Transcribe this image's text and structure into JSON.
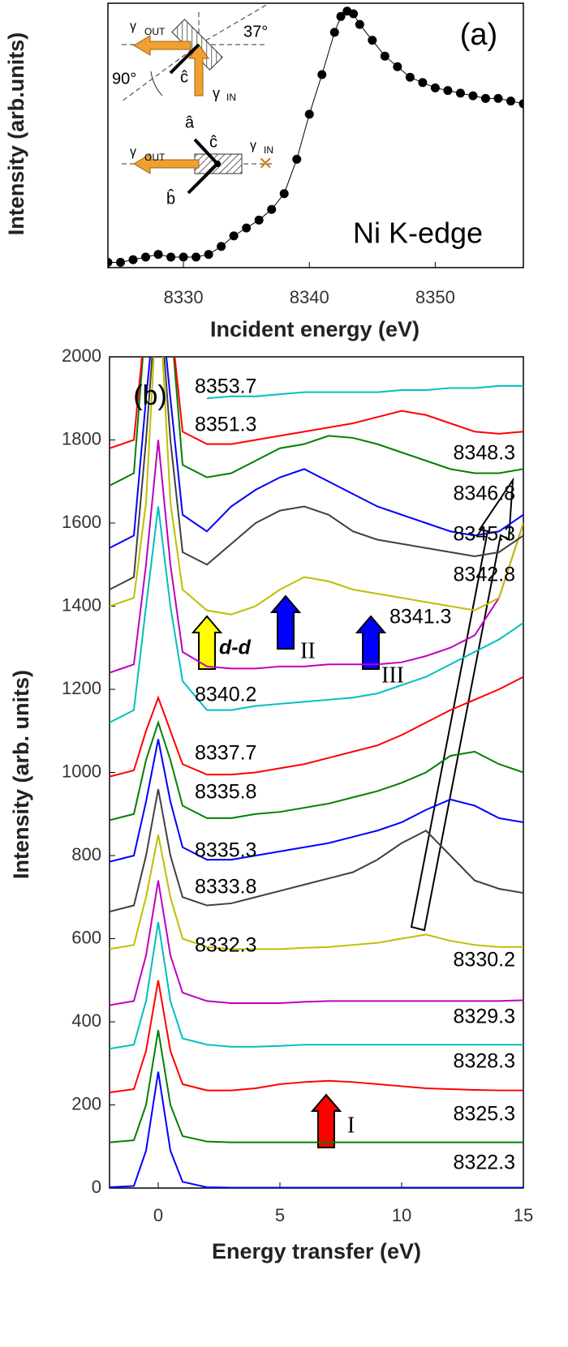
{
  "chart_data": [
    {
      "type": "line",
      "markers": true,
      "color": "#000000",
      "xlabel": "Incident energy (eV)",
      "ylabel": "Intensity (arb.units)",
      "x": [
        8324,
        8325,
        8326,
        8327,
        8328,
        8329,
        8330,
        8331,
        8332,
        8333,
        8334,
        8335,
        8336,
        8337,
        8338,
        8339,
        8340,
        8341,
        8342,
        8342.5,
        8343,
        8343.5,
        8344,
        8345,
        8346,
        8347,
        8348,
        8349,
        8350,
        8351,
        8352,
        8353,
        8354,
        8355,
        8356,
        8357
      ],
      "values": [
        0.02,
        0.02,
        0.03,
        0.04,
        0.05,
        0.04,
        0.04,
        0.04,
        0.05,
        0.08,
        0.12,
        0.15,
        0.18,
        0.22,
        0.28,
        0.41,
        0.58,
        0.73,
        0.89,
        0.95,
        0.97,
        0.96,
        0.92,
        0.86,
        0.8,
        0.76,
        0.72,
        0.7,
        0.68,
        0.67,
        0.66,
        0.65,
        0.64,
        0.64,
        0.63,
        0.62
      ],
      "xlim": [
        8324,
        8357
      ],
      "xticks": [
        8330,
        8340,
        8350
      ],
      "ylim": [
        0,
        1
      ],
      "annotations": [
        "(a)",
        "Ni K-edge"
      ],
      "inset": [
        "γ",
        "OUT",
        "37°",
        "90°",
        "ĉ",
        "γ",
        "IN",
        "â",
        "ĉ",
        "γ",
        "OUT",
        "γ",
        "IN",
        "b̂"
      ]
    },
    {
      "type": "line",
      "markers": false,
      "xlabel": "Energy transfer (eV)",
      "ylabel": "Intensity (arb. units)",
      "x": [
        -2,
        -1,
        -0.5,
        0,
        0.5,
        1,
        2,
        3,
        4,
        5,
        6,
        7,
        8,
        9,
        10,
        11,
        12,
        13,
        14,
        15
      ],
      "xlim": [
        -2,
        15
      ],
      "xticks": [
        0,
        5,
        10,
        15
      ],
      "ylim": [
        0,
        2000
      ],
      "yticks": [
        0,
        200,
        400,
        600,
        800,
        1000,
        1200,
        1400,
        1600,
        1800,
        2000
      ],
      "annotations": [
        "(b)",
        "d-d",
        "II",
        "III",
        "I"
      ],
      "series": [
        {
          "name": "8322.3",
          "color": "#0000ff",
          "values": [
            2,
            5,
            90,
            280,
            90,
            15,
            2,
            1,
            1,
            1,
            1,
            1,
            1,
            1,
            1,
            1,
            1,
            1,
            1,
            1
          ]
        },
        {
          "name": "8325.3",
          "color": "#008000",
          "values": [
            110,
            115,
            200,
            380,
            200,
            125,
            112,
            110,
            110,
            110,
            110,
            110,
            110,
            110,
            110,
            110,
            110,
            110,
            110,
            110
          ]
        },
        {
          "name": "8328.3",
          "color": "#ff0000",
          "values": [
            230,
            238,
            330,
            500,
            330,
            250,
            235,
            235,
            240,
            250,
            255,
            258,
            255,
            250,
            245,
            240,
            238,
            236,
            235,
            235
          ]
        },
        {
          "name": "8329.3",
          "color": "#00bfbf",
          "values": [
            335,
            345,
            450,
            640,
            450,
            360,
            345,
            340,
            340,
            342,
            345,
            345,
            345,
            345,
            345,
            345,
            345,
            345,
            345,
            345
          ]
        },
        {
          "name": "8330.2",
          "color": "#bf00bf",
          "values": [
            440,
            450,
            560,
            740,
            560,
            470,
            450,
            445,
            445,
            445,
            448,
            450,
            450,
            450,
            450,
            450,
            450,
            450,
            450,
            452
          ]
        },
        {
          "name": "8332.3",
          "color": "#bfbf00",
          "values": [
            575,
            585,
            700,
            850,
            700,
            600,
            580,
            575,
            575,
            575,
            578,
            580,
            585,
            590,
            600,
            610,
            595,
            585,
            580,
            580
          ]
        },
        {
          "name": "8333.8",
          "color": "#404040",
          "values": [
            665,
            680,
            800,
            960,
            800,
            700,
            680,
            685,
            700,
            715,
            730,
            745,
            760,
            790,
            830,
            860,
            800,
            740,
            720,
            710
          ]
        },
        {
          "name": "8335.3",
          "color": "#0000ff",
          "values": [
            785,
            800,
            930,
            1080,
            930,
            820,
            790,
            790,
            800,
            810,
            820,
            830,
            845,
            860,
            880,
            910,
            935,
            920,
            890,
            880
          ]
        },
        {
          "name": "8335.8",
          "color": "#008000",
          "values": [
            885,
            900,
            1030,
            1120,
            1030,
            920,
            890,
            890,
            900,
            905,
            915,
            925,
            940,
            955,
            975,
            1000,
            1040,
            1050,
            1020,
            1000
          ]
        },
        {
          "name": "8337.7",
          "color": "#ff0000",
          "values": [
            990,
            1005,
            1100,
            1180,
            1100,
            1020,
            995,
            995,
            1000,
            1010,
            1020,
            1035,
            1050,
            1065,
            1090,
            1120,
            1150,
            1175,
            1200,
            1230
          ]
        },
        {
          "name": "8340.2",
          "color": "#00bfbf",
          "values": [
            1120,
            1150,
            1400,
            1640,
            1400,
            1220,
            1150,
            1150,
            1160,
            1165,
            1170,
            1175,
            1180,
            1190,
            1210,
            1230,
            1260,
            1290,
            1320,
            1360
          ]
        },
        {
          "name": "8341.3",
          "color": "#bf00bf",
          "values": [
            1240,
            1260,
            1500,
            1800,
            1500,
            1290,
            1255,
            1250,
            1250,
            1255,
            1255,
            1260,
            1260,
            1260,
            1265,
            1280,
            1300,
            1330,
            1420,
            1600
          ]
        },
        {
          "name": "8342.8",
          "color": "#bfbf00",
          "values": [
            1400,
            1420,
            1650,
            2200,
            1650,
            1440,
            1390,
            1380,
            1400,
            1440,
            1470,
            1460,
            1440,
            1430,
            1420,
            1410,
            1400,
            1390,
            1420,
            1600
          ]
        },
        {
          "name": "8345.3",
          "color": "#404040",
          "values": [
            1440,
            1470,
            1800,
            2200,
            1800,
            1530,
            1500,
            1550,
            1600,
            1630,
            1640,
            1620,
            1580,
            1560,
            1550,
            1540,
            1530,
            1520,
            1530,
            1570
          ]
        },
        {
          "name": "8346.8",
          "color": "#0000ff",
          "values": [
            1540,
            1570,
            1900,
            2200,
            1900,
            1620,
            1580,
            1640,
            1680,
            1710,
            1730,
            1700,
            1670,
            1640,
            1620,
            1600,
            1580,
            1570,
            1580,
            1620
          ]
        },
        {
          "name": "8348.3",
          "color": "#008000",
          "values": [
            1690,
            1720,
            2100,
            2200,
            2100,
            1740,
            1710,
            1720,
            1750,
            1780,
            1790,
            1810,
            1805,
            1790,
            1770,
            1750,
            1730,
            1720,
            1720,
            1730
          ]
        },
        {
          "name": "8351.3",
          "color": "#ff0000",
          "values": [
            1780,
            1800,
            2100,
            2200,
            2100,
            1820,
            1790,
            1790,
            1800,
            1810,
            1820,
            1830,
            1840,
            1855,
            1870,
            1860,
            1840,
            1820,
            1815,
            1820
          ]
        },
        {
          "name": "8353.7",
          "color": "#00bfbf",
          "values": [
            null,
            null,
            null,
            null,
            null,
            null,
            1900,
            1905,
            1905,
            1910,
            1915,
            1915,
            1915,
            1915,
            1920,
            1920,
            1925,
            1925,
            1930,
            1930
          ]
        }
      ]
    }
  ]
}
